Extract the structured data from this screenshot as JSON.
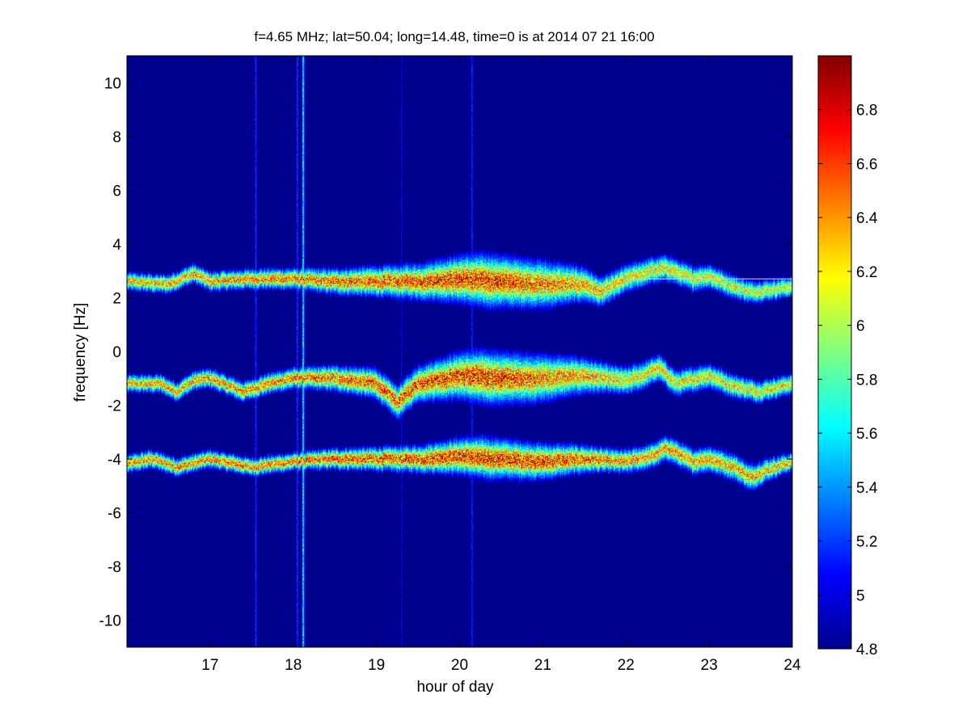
{
  "chart_data": {
    "type": "heatmap",
    "title": "f=4.65 MHz;  lat=50.04; long=14.48, time=0 is at 2014 07 21 16:00",
    "xlabel": "hour of day",
    "ylabel": "frequency [Hz]",
    "xlim": [
      16,
      24
    ],
    "ylim": [
      -11,
      11
    ],
    "x_ticks": [
      17,
      18,
      19,
      20,
      21,
      22,
      23,
      24
    ],
    "y_ticks": [
      -10,
      -8,
      -6,
      -4,
      -2,
      0,
      2,
      4,
      6,
      8,
      10
    ],
    "colorbar": {
      "colormap": "jet",
      "range": [
        4.8,
        7.0
      ],
      "ticks": [
        "4.8",
        "5",
        "5.2",
        "5.4",
        "5.6",
        "5.8",
        "6",
        "6.2",
        "6.4",
        "6.6",
        "6.8"
      ],
      "background_color": "#00008f"
    },
    "bands": [
      {
        "ridge": [
          [
            16.0,
            2.6
          ],
          [
            16.5,
            2.5
          ],
          [
            16.8,
            2.9
          ],
          [
            17.0,
            2.6
          ],
          [
            17.5,
            2.7
          ],
          [
            18.0,
            2.7
          ],
          [
            18.5,
            2.6
          ],
          [
            19.0,
            2.6
          ],
          [
            19.5,
            2.6
          ],
          [
            20.0,
            2.7
          ],
          [
            20.5,
            2.6
          ],
          [
            21.0,
            2.5
          ],
          [
            21.5,
            2.5
          ],
          [
            21.7,
            2.2
          ],
          [
            22.0,
            2.7
          ],
          [
            22.3,
            3.0
          ],
          [
            22.5,
            3.1
          ],
          [
            22.8,
            2.7
          ],
          [
            23.0,
            2.8
          ],
          [
            23.3,
            2.4
          ],
          [
            23.5,
            2.2
          ],
          [
            24.0,
            2.4
          ]
        ],
        "width": [
          [
            16.0,
            0.3
          ],
          [
            18.0,
            0.35
          ],
          [
            19.5,
            0.6
          ],
          [
            20.3,
            0.9
          ],
          [
            21.0,
            0.8
          ],
          [
            21.7,
            0.5
          ],
          [
            22.5,
            0.45
          ],
          [
            24.0,
            0.35
          ]
        ],
        "peak": [
          [
            16.0,
            0.8
          ],
          [
            18.0,
            0.9
          ],
          [
            19.5,
            0.95
          ],
          [
            20.3,
            1.0
          ],
          [
            21.0,
            0.9
          ],
          [
            22.0,
            0.75
          ],
          [
            24.0,
            0.7
          ]
        ]
      },
      {
        "ridge": [
          [
            16.0,
            -1.2
          ],
          [
            16.4,
            -1.2
          ],
          [
            16.6,
            -1.5
          ],
          [
            16.8,
            -1.1
          ],
          [
            17.0,
            -1.0
          ],
          [
            17.4,
            -1.5
          ],
          [
            17.7,
            -1.2
          ],
          [
            18.0,
            -1.0
          ],
          [
            18.5,
            -1.0
          ],
          [
            19.0,
            -1.2
          ],
          [
            19.25,
            -1.9
          ],
          [
            19.5,
            -1.2
          ],
          [
            20.0,
            -0.9
          ],
          [
            20.5,
            -1.0
          ],
          [
            21.0,
            -1.0
          ],
          [
            21.5,
            -0.9
          ],
          [
            22.0,
            -1.1
          ],
          [
            22.2,
            -0.9
          ],
          [
            22.4,
            -0.6
          ],
          [
            22.6,
            -1.2
          ],
          [
            23.0,
            -0.9
          ],
          [
            23.3,
            -1.3
          ],
          [
            23.6,
            -1.5
          ],
          [
            24.0,
            -1.2
          ]
        ],
        "width": [
          [
            16.0,
            0.3
          ],
          [
            18.0,
            0.35
          ],
          [
            19.5,
            0.6
          ],
          [
            20.3,
            0.9
          ],
          [
            21.0,
            0.8
          ],
          [
            21.8,
            0.5
          ],
          [
            22.5,
            0.45
          ],
          [
            24.0,
            0.35
          ]
        ],
        "peak": [
          [
            16.0,
            0.8
          ],
          [
            18.0,
            0.9
          ],
          [
            19.5,
            0.95
          ],
          [
            20.3,
            1.0
          ],
          [
            21.0,
            0.9
          ],
          [
            22.0,
            0.75
          ],
          [
            24.0,
            0.75
          ]
        ]
      },
      {
        "ridge": [
          [
            16.0,
            -4.2
          ],
          [
            16.3,
            -4.0
          ],
          [
            16.6,
            -4.3
          ],
          [
            17.0,
            -4.0
          ],
          [
            17.5,
            -4.3
          ],
          [
            18.0,
            -4.1
          ],
          [
            18.5,
            -4.0
          ],
          [
            19.0,
            -4.0
          ],
          [
            19.5,
            -4.0
          ],
          [
            20.0,
            -3.9
          ],
          [
            20.5,
            -4.0
          ],
          [
            21.0,
            -4.1
          ],
          [
            21.5,
            -4.0
          ],
          [
            22.0,
            -4.1
          ],
          [
            22.3,
            -3.9
          ],
          [
            22.5,
            -3.6
          ],
          [
            22.8,
            -4.1
          ],
          [
            23.0,
            -4.0
          ],
          [
            23.3,
            -4.3
          ],
          [
            23.5,
            -4.7
          ],
          [
            23.7,
            -4.4
          ],
          [
            24.0,
            -4.1
          ]
        ],
        "width": [
          [
            16.0,
            0.3
          ],
          [
            18.0,
            0.3
          ],
          [
            19.5,
            0.45
          ],
          [
            20.3,
            0.7
          ],
          [
            21.0,
            0.6
          ],
          [
            21.8,
            0.4
          ],
          [
            23.5,
            0.45
          ],
          [
            24.0,
            0.3
          ]
        ],
        "peak": [
          [
            16.0,
            0.85
          ],
          [
            18.0,
            0.9
          ],
          [
            19.5,
            1.0
          ],
          [
            20.3,
            1.0
          ],
          [
            21.0,
            1.0
          ],
          [
            22.0,
            0.85
          ],
          [
            24.0,
            0.8
          ]
        ]
      }
    ],
    "artifacts": [
      {
        "x": 18.12,
        "strength": 0.55
      },
      {
        "x": 17.55,
        "strength": 0.22
      },
      {
        "x": 18.05,
        "strength": 0.25
      },
      {
        "x": 20.15,
        "strength": 0.22
      },
      {
        "x": 19.3,
        "strength": 0.15
      }
    ],
    "reference_lines": [
      {
        "y": 2.7,
        "x_from": 16.3,
        "x_to": 17.0
      },
      {
        "y": 2.7,
        "x_from": 22.0,
        "x_to": 24.0
      }
    ]
  }
}
